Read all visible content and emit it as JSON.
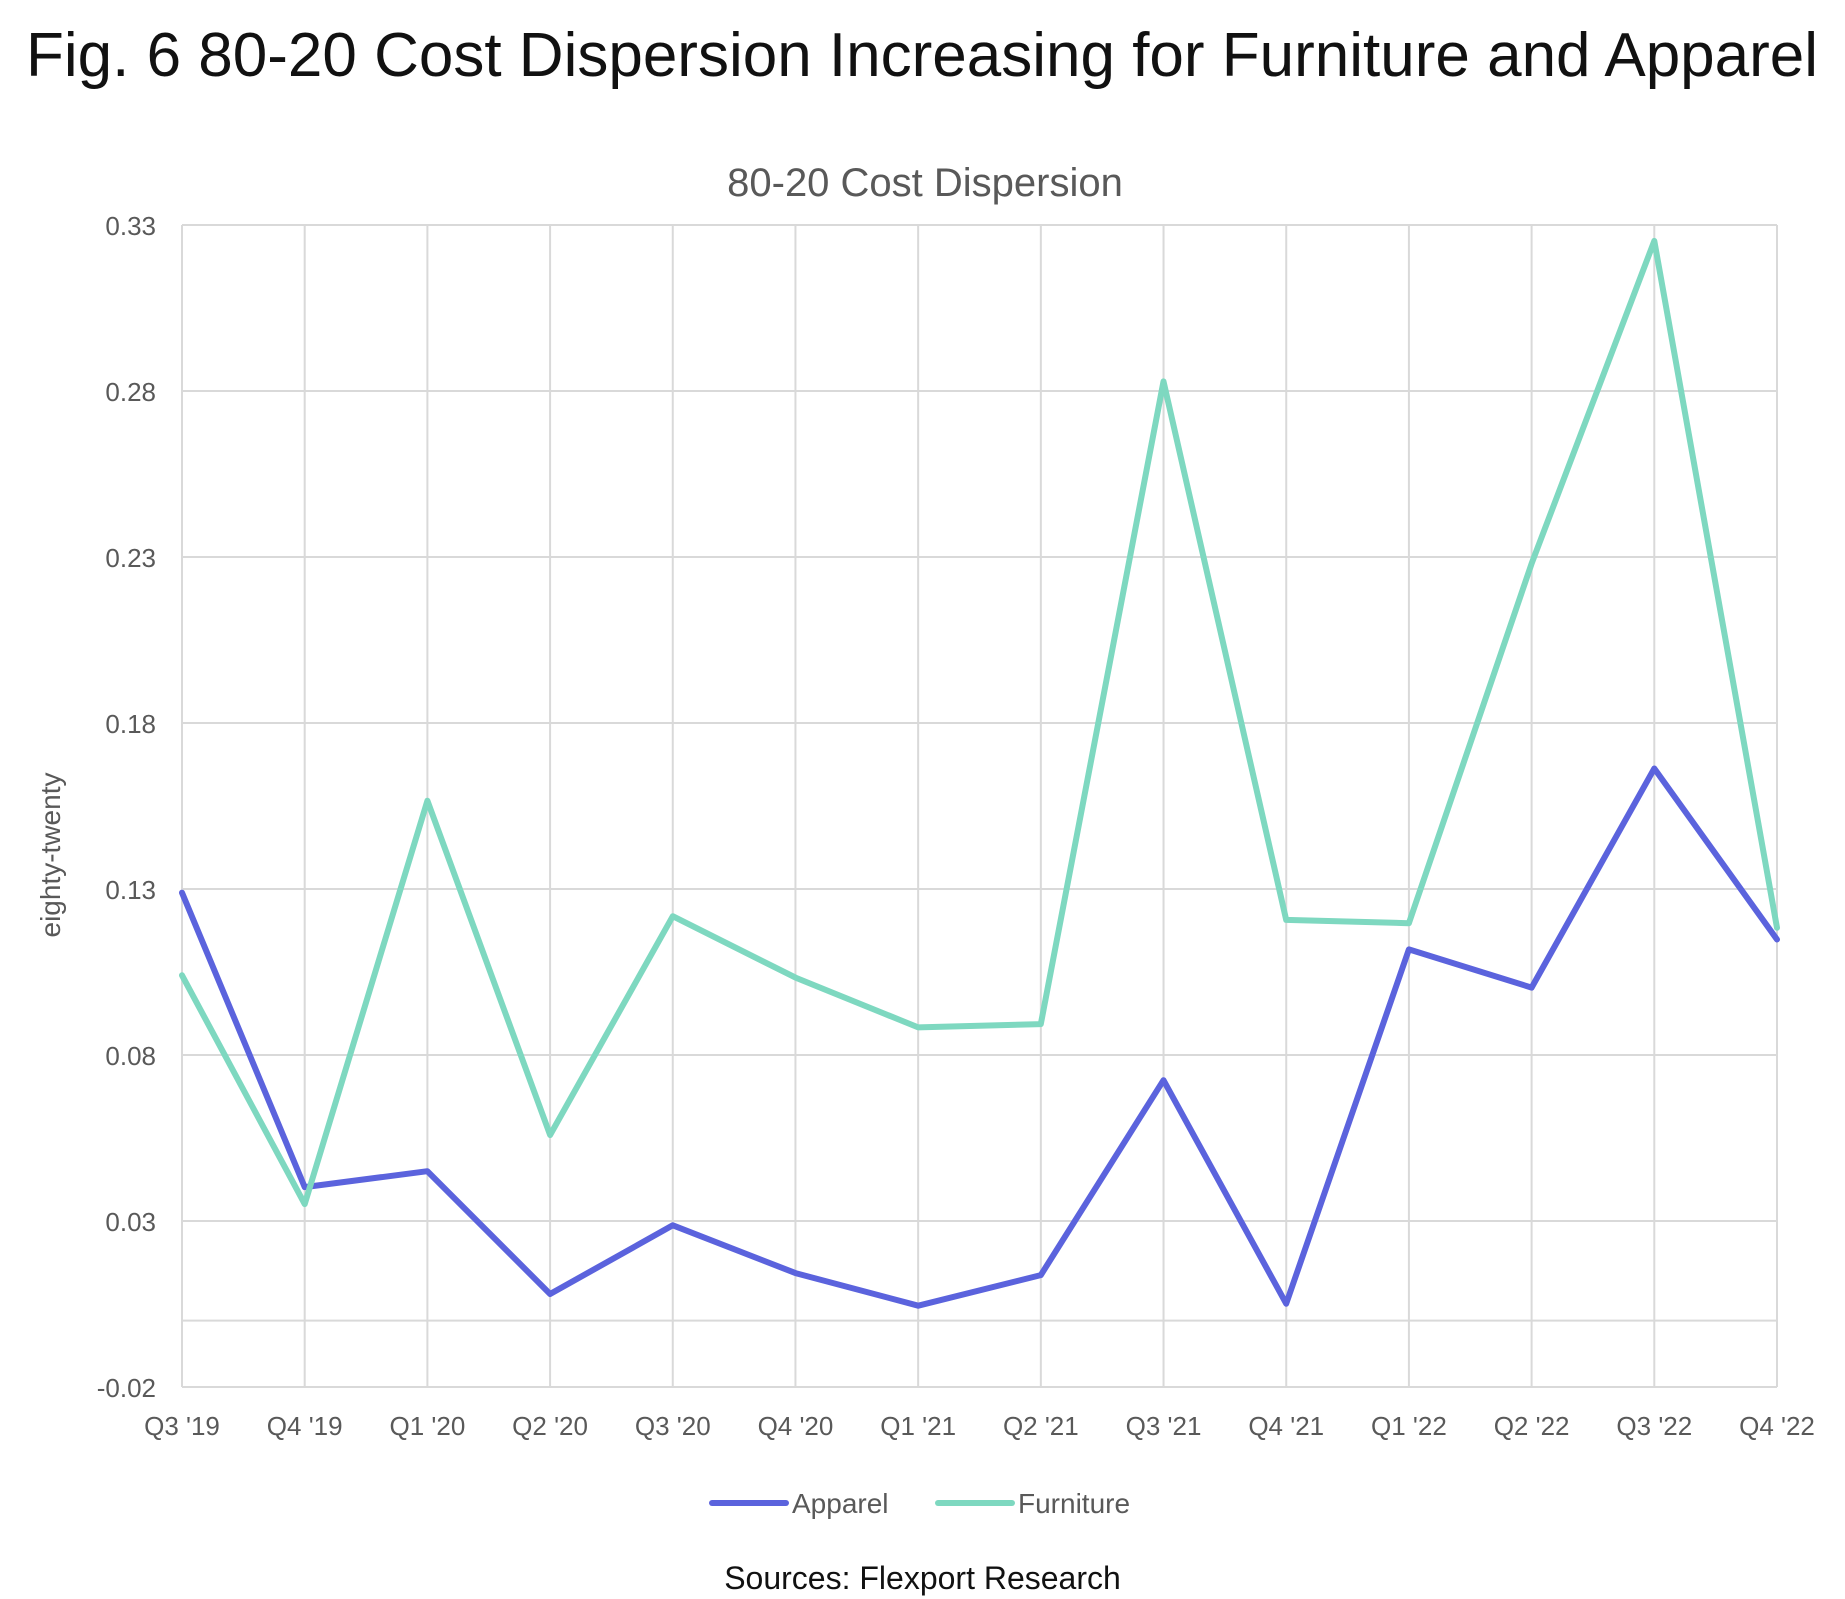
{
  "figure": {
    "title": "Fig. 6 80-20 Cost Dispersion Increasing for Furniture and Apparel",
    "source": "Sources: Flexport Research"
  },
  "colors": {
    "apparel": "#5b63dd",
    "furniture": "#7ed8c0",
    "grid": "#d9d9d9",
    "text": "#595959"
  },
  "chart_data": {
    "type": "line",
    "title": "80-20 Cost Dispersion",
    "xlabel": "",
    "ylabel": "eighty-twenty",
    "categories": [
      "Q3 '19",
      "Q4 '19",
      "Q1 '20",
      "Q2 '20",
      "Q3 '20",
      "Q4 '20",
      "Q1 '21",
      "Q2 '21",
      "Q3 '21",
      "Q4 '21",
      "Q1 '22",
      "Q2 '22",
      "Q3 '22",
      "Q4 '22"
    ],
    "ylim": [
      -0.02,
      0.33
    ],
    "yticks": [
      -0.02,
      0.03,
      0.08,
      0.13,
      0.18,
      0.23,
      0.28,
      0.33
    ],
    "grid": true,
    "legend_position": "bottom",
    "series": [
      {
        "name": "Apparel",
        "color": "#5b63dd",
        "values": [
          0.1289,
          0.0402,
          0.045,
          0.008,
          0.0287,
          0.0143,
          0.0045,
          0.0137,
          0.0724,
          0.0051,
          0.1118,
          0.1003,
          0.1663,
          0.1148
        ]
      },
      {
        "name": "Furniture",
        "color": "#7ed8c0",
        "values": [
          0.104,
          0.0351,
          0.1566,
          0.0559,
          0.1218,
          0.1033,
          0.0883,
          0.0893,
          0.2829,
          0.1207,
          0.1197,
          0.228,
          0.3252,
          0.1183
        ]
      }
    ]
  }
}
